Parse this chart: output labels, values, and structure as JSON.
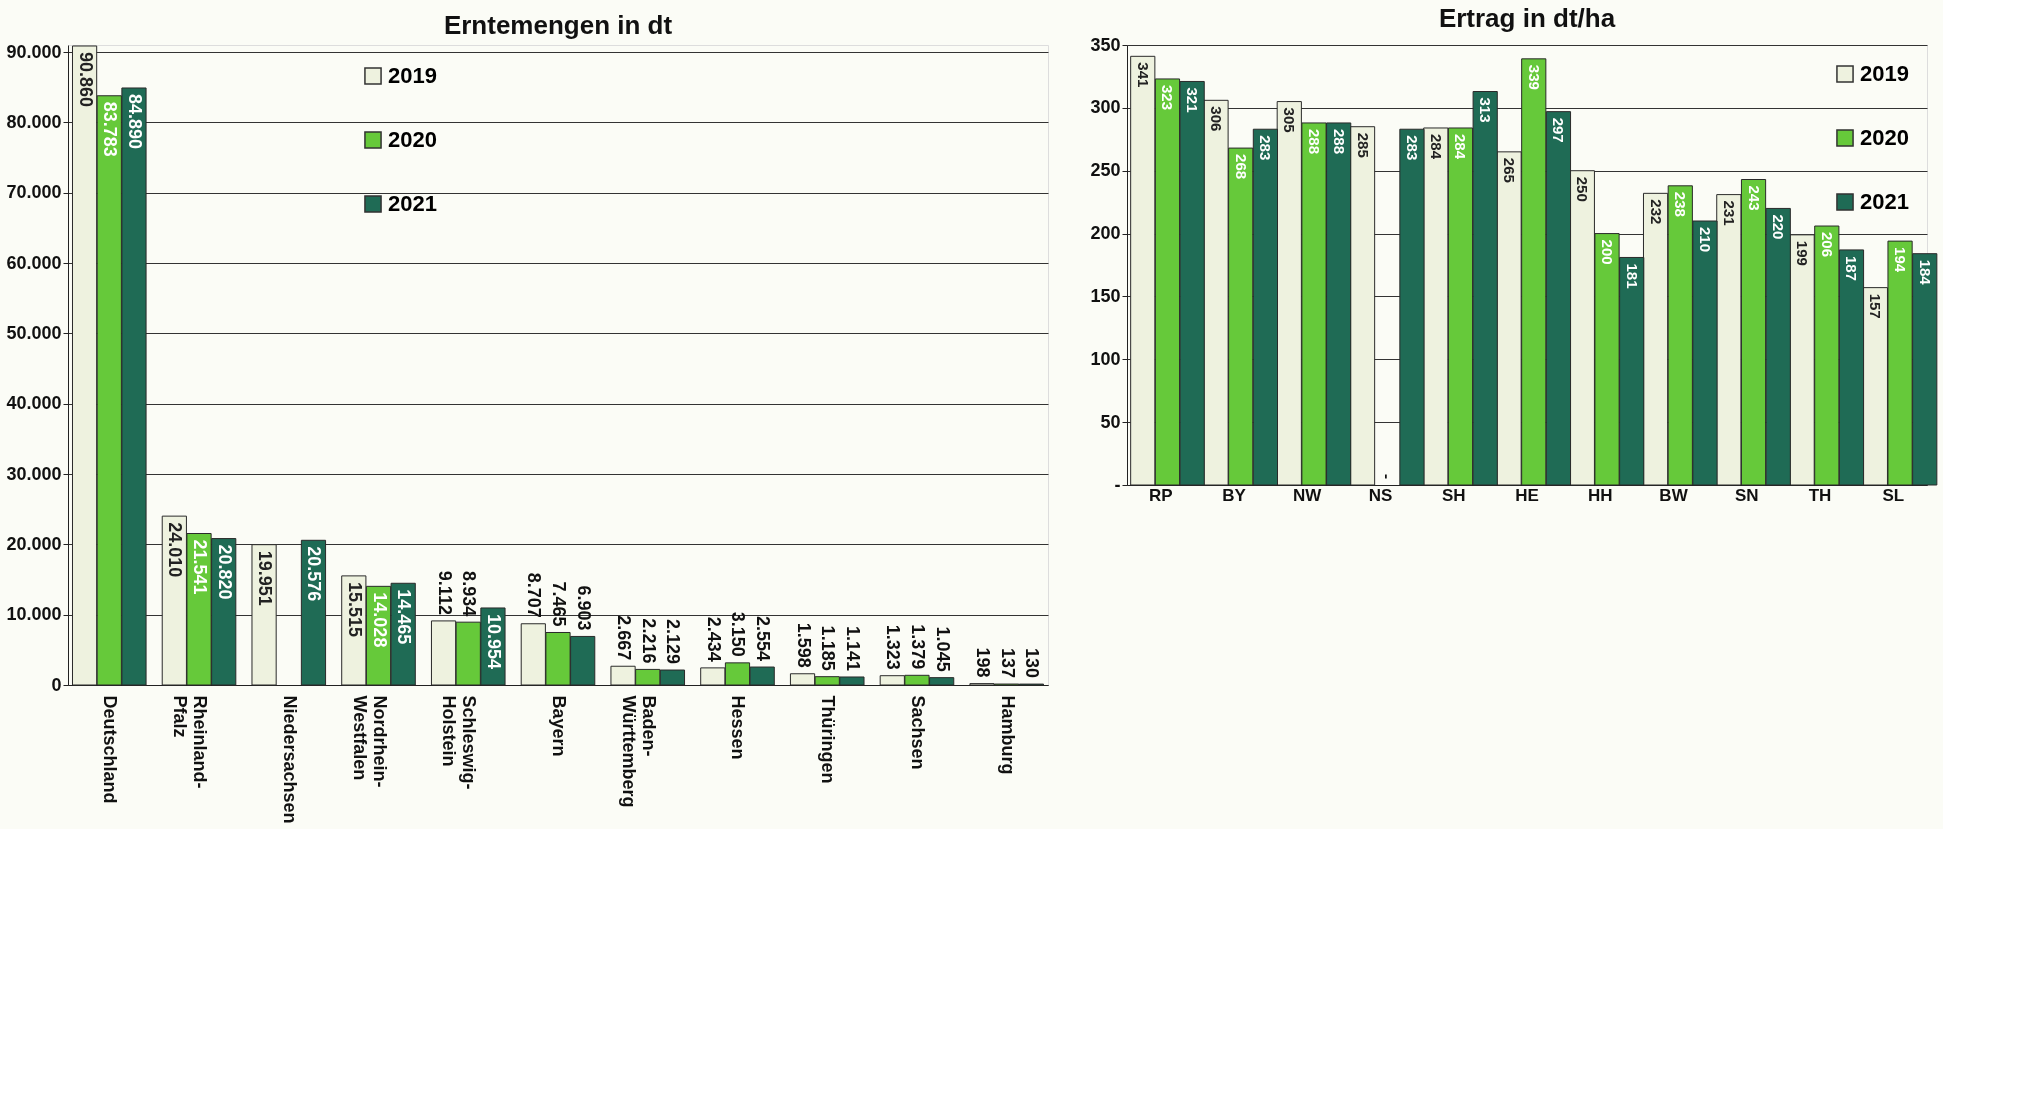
{
  "chart_data": [
    {
      "type": "bar",
      "title": "Erntemengen in dt",
      "categories": [
        "Deutschland",
        "Rheinland-Pfalz",
        "Niedersachsen",
        "Nordrhein-Westfalen",
        "Schleswig-Holstein",
        "Bayern",
        "Baden-Württemberg",
        "Hessen",
        "Thüringen",
        "Sachsen",
        "Hamburg"
      ],
      "series": [
        {
          "name": "2019",
          "color": "#eef2df",
          "values": [
            90860,
            24010,
            19951,
            15515,
            9112,
            8707,
            2667,
            2434,
            1598,
            1323,
            198
          ],
          "value_labels": [
            "90.860",
            "24.010",
            "19.951",
            "15.515",
            "9.112",
            "8.707",
            "2.667",
            "2.434",
            "1.598",
            "1.323",
            "198"
          ]
        },
        {
          "name": "2020",
          "color": "#66c93a",
          "values": [
            83783,
            21541,
            null,
            14028,
            8934,
            7465,
            2216,
            3150,
            1185,
            1379,
            137
          ],
          "value_labels": [
            "83.783",
            "21.541",
            null,
            "14.028",
            "8.934",
            "7.465",
            "2.216",
            "3.150",
            "1.185",
            "1.379",
            "137"
          ]
        },
        {
          "name": "2021",
          "color": "#1f6b55",
          "values": [
            84890,
            20820,
            20576,
            14465,
            10954,
            6903,
            2129,
            2554,
            1141,
            1045,
            130
          ],
          "value_labels": [
            "84.890",
            "20.820",
            "20.576",
            "14.465",
            "10.954",
            "6.903",
            "2.129",
            "2.554",
            "1.141",
            "1.045",
            "130"
          ]
        }
      ],
      "ylim": [
        0,
        91000
      ],
      "yticks": [
        {
          "value": 0,
          "label": "0"
        },
        {
          "value": 10000,
          "label": "10.000"
        },
        {
          "value": 20000,
          "label": "20.000"
        },
        {
          "value": 30000,
          "label": "30.000"
        },
        {
          "value": 40000,
          "label": "40.000"
        },
        {
          "value": 50000,
          "label": "50.000"
        },
        {
          "value": 60000,
          "label": "60.000"
        },
        {
          "value": 70000,
          "label": "70.000"
        },
        {
          "value": 80000,
          "label": "80.000"
        },
        {
          "value": 90000,
          "label": "90.000"
        }
      ],
      "grid": "y",
      "legend": "top"
    },
    {
      "type": "bar",
      "title": "Ertrag in dt/ha",
      "categories": [
        "RP",
        "BY",
        "NW",
        "NS",
        "SH",
        "HE",
        "HH",
        "BW",
        "SN",
        "TH",
        "SL"
      ],
      "series": [
        {
          "name": "2019",
          "color": "#eef2df",
          "values": [
            341,
            306,
            305,
            285,
            284,
            265,
            250,
            232,
            231,
            199,
            157
          ],
          "value_labels": [
            "341",
            "306",
            "305",
            "285",
            "284",
            "265",
            "250",
            "232",
            "231",
            "199",
            "157"
          ]
        },
        {
          "name": "2020",
          "color": "#66c93a",
          "values": [
            323,
            268,
            288,
            null,
            284,
            339,
            200,
            238,
            243,
            206,
            194
          ],
          "value_labels": [
            "323",
            "268",
            "288",
            "-",
            "284",
            "339",
            "200",
            "238",
            "243",
            "206",
            "194"
          ]
        },
        {
          "name": "2021",
          "color": "#1f6b55",
          "values": [
            321,
            283,
            288,
            283,
            313,
            297,
            181,
            210,
            220,
            187,
            184
          ],
          "value_labels": [
            "321",
            "283",
            "288",
            "283",
            "313",
            "297",
            "181",
            "210",
            "220",
            "187",
            "184"
          ]
        }
      ],
      "ylim": [
        0,
        350
      ],
      "yticks": [
        {
          "value": 0,
          "label": "-"
        },
        50,
        100,
        150,
        200,
        250,
        300,
        350
      ],
      "grid": "y",
      "legend": "top right"
    }
  ]
}
